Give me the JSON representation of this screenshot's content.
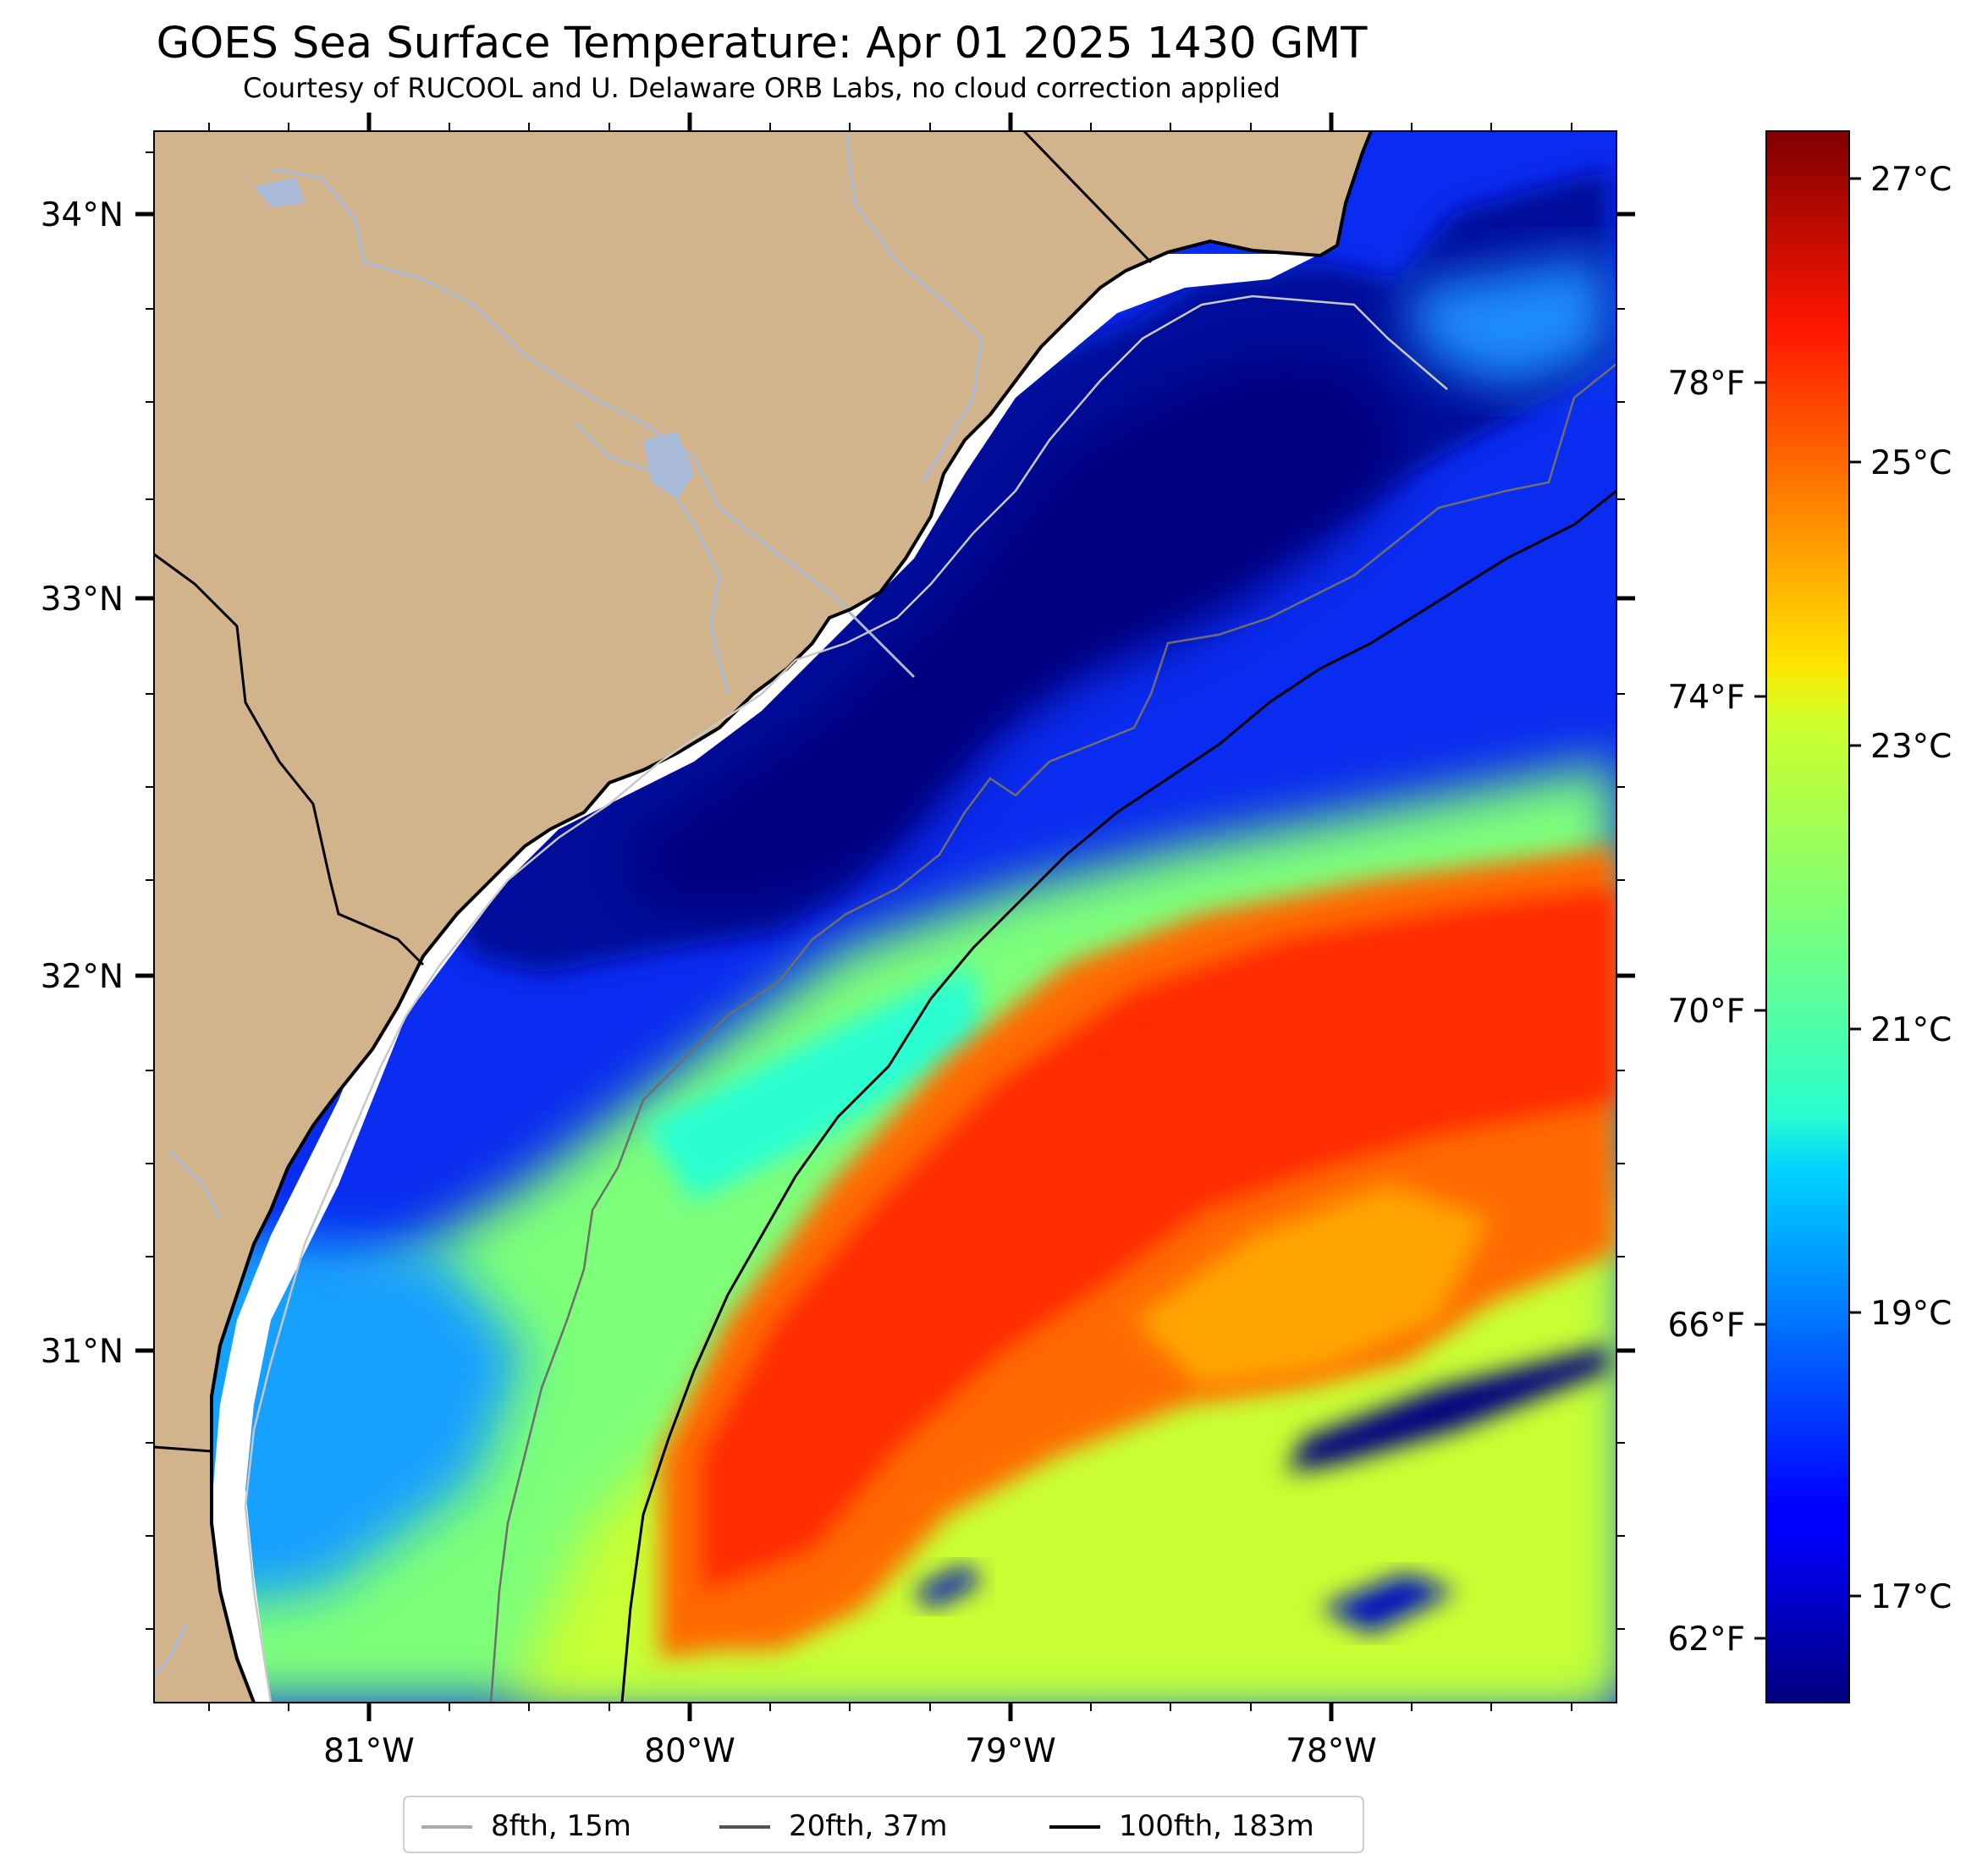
{
  "title": "GOES Sea Surface Temperature: Apr 01 2025 1430 GMT",
  "subtitle": "Courtesy of RUCOOL and U. Delaware ORB Labs, no cloud correction applied",
  "axes": {
    "latitude_labels": [
      "34°N",
      "33°N",
      "32°N",
      "31°N"
    ],
    "longitude_labels": [
      "81°W",
      "80°W",
      "79°W",
      "78°W"
    ],
    "fahrenheit_labels": [
      "78°F",
      "74°F",
      "70°F",
      "66°F",
      "62°F"
    ],
    "celsius_labels": [
      "27°C",
      "25°C",
      "23°C",
      "21°C",
      "19°C",
      "17°C"
    ]
  },
  "colors": {
    "land": "#d2b48c",
    "water_body": "#a9b9d8",
    "no_data": "#ffffff",
    "coastline": "#000000"
  },
  "colorbar": {
    "cmap": "jet",
    "range_c": [
      16,
      27.5
    ]
  },
  "legend": {
    "items": [
      {
        "label": "8fth, 15m",
        "color": "#aaaaaa"
      },
      {
        "label": "20fth, 37m",
        "color": "#555555"
      },
      {
        "label": "100fth, 183m",
        "color": "#000000"
      }
    ]
  }
}
